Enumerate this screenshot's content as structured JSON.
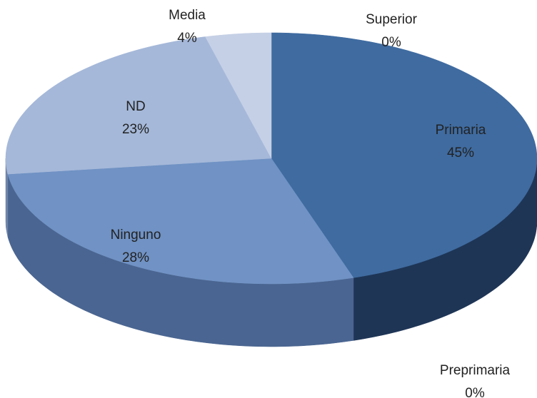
{
  "chart_data": {
    "type": "pie",
    "categories": [
      "Superior",
      "Primaria",
      "Preprimaria",
      "Ninguno",
      "ND",
      "Media"
    ],
    "values": [
      0,
      45,
      0,
      28,
      23,
      4
    ],
    "value_labels": [
      "0%",
      "45%",
      "0%",
      "28%",
      "23%",
      "4%"
    ],
    "colors": [
      "#2f5f97",
      "#3f6ba0",
      "#3a6699",
      "#7092c4",
      "#a5b8d9",
      "#c5d0e6"
    ],
    "side_colors": [
      "#1f3f66",
      "#1e3556",
      "#1e3556",
      "#4a6591",
      "#6f84a8",
      "#8a99b8"
    ]
  }
}
